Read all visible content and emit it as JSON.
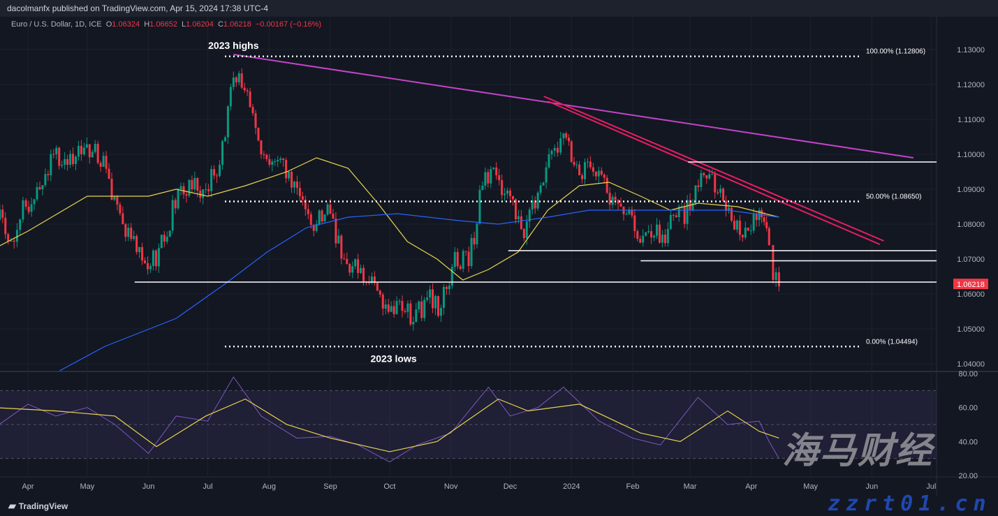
{
  "header": {
    "publisher": "dacolmanfx published on TradingView.com, Apr 15, 2024 17:38 UTC-4"
  },
  "legend": {
    "symbol": "Euro / U.S. Dollar, 1D, ICE",
    "o_label": "O",
    "o": "1.06324",
    "h_label": "H",
    "h": "1.06652",
    "l_label": "L",
    "l": "1.06204",
    "c_label": "C",
    "c": "1.06218",
    "change": "−0.00167 (−0.16%)"
  },
  "colors": {
    "up": "#089981",
    "down": "#f23645",
    "ma_fast": "#e8d44d",
    "ma_slow": "#2962ff",
    "trend_long": "#c444c9",
    "trend_channel": "#e91e63",
    "rsi": "#7e57c2",
    "rsi_ma": "#e8d44d",
    "background": "#131722"
  },
  "footer": {
    "logo": "TradingView"
  },
  "watermark": {
    "text": "海马财经",
    "url": "zzrt01.cn"
  },
  "chart_data": {
    "type": "candlestick",
    "price_axis": {
      "ticks": [
        "1.13000",
        "1.12000",
        "1.11000",
        "1.10000",
        "1.09000",
        "1.08000",
        "1.07000",
        "1.06000",
        "1.05000",
        "1.04000"
      ],
      "range": [
        1.0385,
        1.134
      ]
    },
    "last_price": "1.06218",
    "time_axis": {
      "ticks": [
        "Apr",
        "May",
        "Jun",
        "Jul",
        "Aug",
        "Sep",
        "Oct",
        "Nov",
        "Dec",
        "2024",
        "Feb",
        "Mar",
        "Apr",
        "May",
        "Jun",
        "Jul"
      ]
    },
    "close": [
      [
        "2023-03-15",
        1.085
      ],
      [
        "2023-03-22",
        1.075
      ],
      [
        "2023-03-31",
        1.085
      ],
      [
        "2023-04-07",
        1.09
      ],
      [
        "2023-04-14",
        1.1
      ],
      [
        "2023-04-21",
        1.097
      ],
      [
        "2023-04-28",
        1.1
      ],
      [
        "2023-05-05",
        1.103
      ],
      [
        "2023-05-12",
        1.093
      ],
      [
        "2023-05-19",
        1.08
      ],
      [
        "2023-05-26",
        1.072
      ],
      [
        "2023-06-02",
        1.068
      ],
      [
        "2023-06-09",
        1.075
      ],
      [
        "2023-06-16",
        1.09
      ],
      [
        "2023-06-23",
        1.09
      ],
      [
        "2023-06-30",
        1.09
      ],
      [
        "2023-07-07",
        1.097
      ],
      [
        "2023-07-14",
        1.122
      ],
      [
        "2023-07-21",
        1.118
      ],
      [
        "2023-07-28",
        1.1
      ],
      [
        "2023-08-04",
        1.098
      ],
      [
        "2023-08-11",
        1.095
      ],
      [
        "2023-08-18",
        1.087
      ],
      [
        "2023-08-25",
        1.08
      ],
      [
        "2023-09-01",
        1.083
      ],
      [
        "2023-09-08",
        1.07
      ],
      [
        "2023-09-15",
        1.066
      ],
      [
        "2023-09-22",
        1.065
      ],
      [
        "2023-09-29",
        1.057
      ],
      [
        "2023-10-06",
        1.058
      ],
      [
        "2023-10-13",
        1.052
      ],
      [
        "2023-10-20",
        1.059
      ],
      [
        "2023-10-27",
        1.056
      ],
      [
        "2023-11-03",
        1.072
      ],
      [
        "2023-11-10",
        1.068
      ],
      [
        "2023-11-17",
        1.091
      ],
      [
        "2023-11-24",
        1.094
      ],
      [
        "2023-12-01",
        1.088
      ],
      [
        "2023-12-08",
        1.076
      ],
      [
        "2023-12-15",
        1.089
      ],
      [
        "2023-12-22",
        1.101
      ],
      [
        "2023-12-28",
        1.106
      ],
      [
        "2024-01-05",
        1.094
      ],
      [
        "2024-01-12",
        1.095
      ],
      [
        "2024-01-19",
        1.089
      ],
      [
        "2024-01-26",
        1.085
      ],
      [
        "2024-02-02",
        1.078
      ],
      [
        "2024-02-09",
        1.078
      ],
      [
        "2024-02-16",
        1.077
      ],
      [
        "2024-02-23",
        1.082
      ],
      [
        "2024-03-01",
        1.084
      ],
      [
        "2024-03-08",
        1.094
      ],
      [
        "2024-03-15",
        1.089
      ],
      [
        "2024-03-22",
        1.081
      ],
      [
        "2024-03-29",
        1.079
      ],
      [
        "2024-04-05",
        1.084
      ],
      [
        "2024-04-10",
        1.074
      ],
      [
        "2024-04-12",
        1.064
      ],
      [
        "2024-04-15",
        1.06218
      ]
    ],
    "ma_fast": [
      [
        "2023-03-15",
        1.073
      ],
      [
        "2023-04-01",
        1.078
      ],
      [
        "2023-05-01",
        1.088
      ],
      [
        "2023-06-01",
        1.088
      ],
      [
        "2023-06-15",
        1.09
      ],
      [
        "2023-07-01",
        1.088
      ],
      [
        "2023-07-20",
        1.091
      ],
      [
        "2023-08-10",
        1.095
      ],
      [
        "2023-08-25",
        1.099
      ],
      [
        "2023-09-10",
        1.096
      ],
      [
        "2023-09-25",
        1.086
      ],
      [
        "2023-10-10",
        1.075
      ],
      [
        "2023-10-25",
        1.07
      ],
      [
        "2023-11-07",
        1.064
      ],
      [
        "2023-11-20",
        1.067
      ],
      [
        "2023-12-05",
        1.072
      ],
      [
        "2023-12-20",
        1.084
      ],
      [
        "2024-01-05",
        1.091
      ],
      [
        "2024-01-20",
        1.092
      ],
      [
        "2024-02-05",
        1.088
      ],
      [
        "2024-02-20",
        1.084
      ],
      [
        "2024-03-05",
        1.086
      ],
      [
        "2024-03-25",
        1.085
      ],
      [
        "2024-04-15",
        1.082
      ]
    ],
    "ma_slow": [
      [
        "2023-04-17",
        1.038
      ],
      [
        "2023-05-10",
        1.045
      ],
      [
        "2023-06-15",
        1.053
      ],
      [
        "2023-07-10",
        1.063
      ],
      [
        "2023-07-31",
        1.072
      ],
      [
        "2023-08-20",
        1.079
      ],
      [
        "2023-09-10",
        1.082
      ],
      [
        "2023-10-05",
        1.083
      ],
      [
        "2023-11-05",
        1.081
      ],
      [
        "2023-11-25",
        1.08
      ],
      [
        "2023-12-20",
        1.082
      ],
      [
        "2024-01-10",
        1.084
      ],
      [
        "2024-02-01",
        1.084
      ],
      [
        "2024-02-25",
        1.084
      ],
      [
        "2024-03-20",
        1.084
      ],
      [
        "2024-04-15",
        1.082
      ]
    ],
    "trendlines": [
      {
        "from": [
          "2023-07-14",
          1.1286
        ],
        "to": [
          "2024-06-22",
          1.099
        ],
        "color": "#c444c9"
      },
      {
        "from": [
          "2023-12-18",
          1.1166
        ],
        "to": [
          "2024-06-07",
          1.0752
        ],
        "color": "#e91e63"
      },
      {
        "from": [
          "2023-12-20",
          1.1152
        ],
        "to": [
          "2024-06-05",
          1.0742
        ],
        "color": "#e91e63"
      }
    ],
    "horizontal_lines": [
      {
        "price": 1.0978,
        "from": "2024-02-29",
        "to": "2024-07-31",
        "style": "solid"
      },
      {
        "price": 1.0724,
        "from": "2023-11-30",
        "to": "2024-07-31",
        "style": "solid"
      },
      {
        "price": 1.0695,
        "from": "2024-02-05",
        "to": "2024-07-31",
        "style": "solid"
      },
      {
        "price": 1.0634,
        "from": "2023-05-25",
        "to": "2024-07-31",
        "style": "solid"
      }
    ],
    "fib_levels": [
      {
        "price": 1.12806,
        "label": "100.00% (1.12806)"
      },
      {
        "price": 1.0865,
        "label": "50.00% (1.08650)"
      },
      {
        "price": 1.04494,
        "label": "0.00% (1.04494)"
      }
    ],
    "annotations": [
      {
        "text": "2023 highs",
        "date": "2023-07-14",
        "price": 1.1286,
        "pos": "above"
      },
      {
        "text": "2023 lows",
        "date": "2023-10-03",
        "price": 1.0449,
        "pos": "below"
      }
    ],
    "rsi": {
      "axis_ticks": [
        "80.00",
        "60.00",
        "40.00",
        "20.00"
      ],
      "range": [
        20,
        80
      ],
      "band": [
        30,
        70
      ],
      "values": [
        [
          "2023-03-15",
          48
        ],
        [
          "2023-04-01",
          62
        ],
        [
          "2023-04-15",
          55
        ],
        [
          "2023-05-01",
          60
        ],
        [
          "2023-05-15",
          50
        ],
        [
          "2023-06-01",
          33
        ],
        [
          "2023-06-15",
          55
        ],
        [
          "2023-07-01",
          52
        ],
        [
          "2023-07-14",
          78
        ],
        [
          "2023-07-28",
          55
        ],
        [
          "2023-08-15",
          42
        ],
        [
          "2023-09-01",
          43
        ],
        [
          "2023-09-15",
          38
        ],
        [
          "2023-10-01",
          28
        ],
        [
          "2023-10-15",
          38
        ],
        [
          "2023-11-01",
          45
        ],
        [
          "2023-11-20",
          72
        ],
        [
          "2023-12-01",
          55
        ],
        [
          "2023-12-15",
          60
        ],
        [
          "2023-12-28",
          72
        ],
        [
          "2024-01-15",
          52
        ],
        [
          "2024-02-01",
          42
        ],
        [
          "2024-02-15",
          38
        ],
        [
          "2024-03-05",
          66
        ],
        [
          "2024-03-20",
          50
        ],
        [
          "2024-04-05",
          52
        ],
        [
          "2024-04-10",
          40
        ],
        [
          "2024-04-15",
          30
        ]
      ],
      "ma": [
        [
          "2023-03-15",
          60
        ],
        [
          "2023-04-15",
          58
        ],
        [
          "2023-05-15",
          55
        ],
        [
          "2023-06-05",
          37
        ],
        [
          "2023-06-30",
          55
        ],
        [
          "2023-07-20",
          65
        ],
        [
          "2023-08-10",
          50
        ],
        [
          "2023-09-01",
          42
        ],
        [
          "2023-10-01",
          34
        ],
        [
          "2023-10-25",
          40
        ],
        [
          "2023-11-25",
          65
        ],
        [
          "2023-12-10",
          58
        ],
        [
          "2024-01-05",
          62
        ],
        [
          "2024-02-05",
          45
        ],
        [
          "2024-02-25",
          40
        ],
        [
          "2024-03-20",
          58
        ],
        [
          "2024-04-05",
          46
        ],
        [
          "2024-04-15",
          42
        ]
      ]
    }
  }
}
